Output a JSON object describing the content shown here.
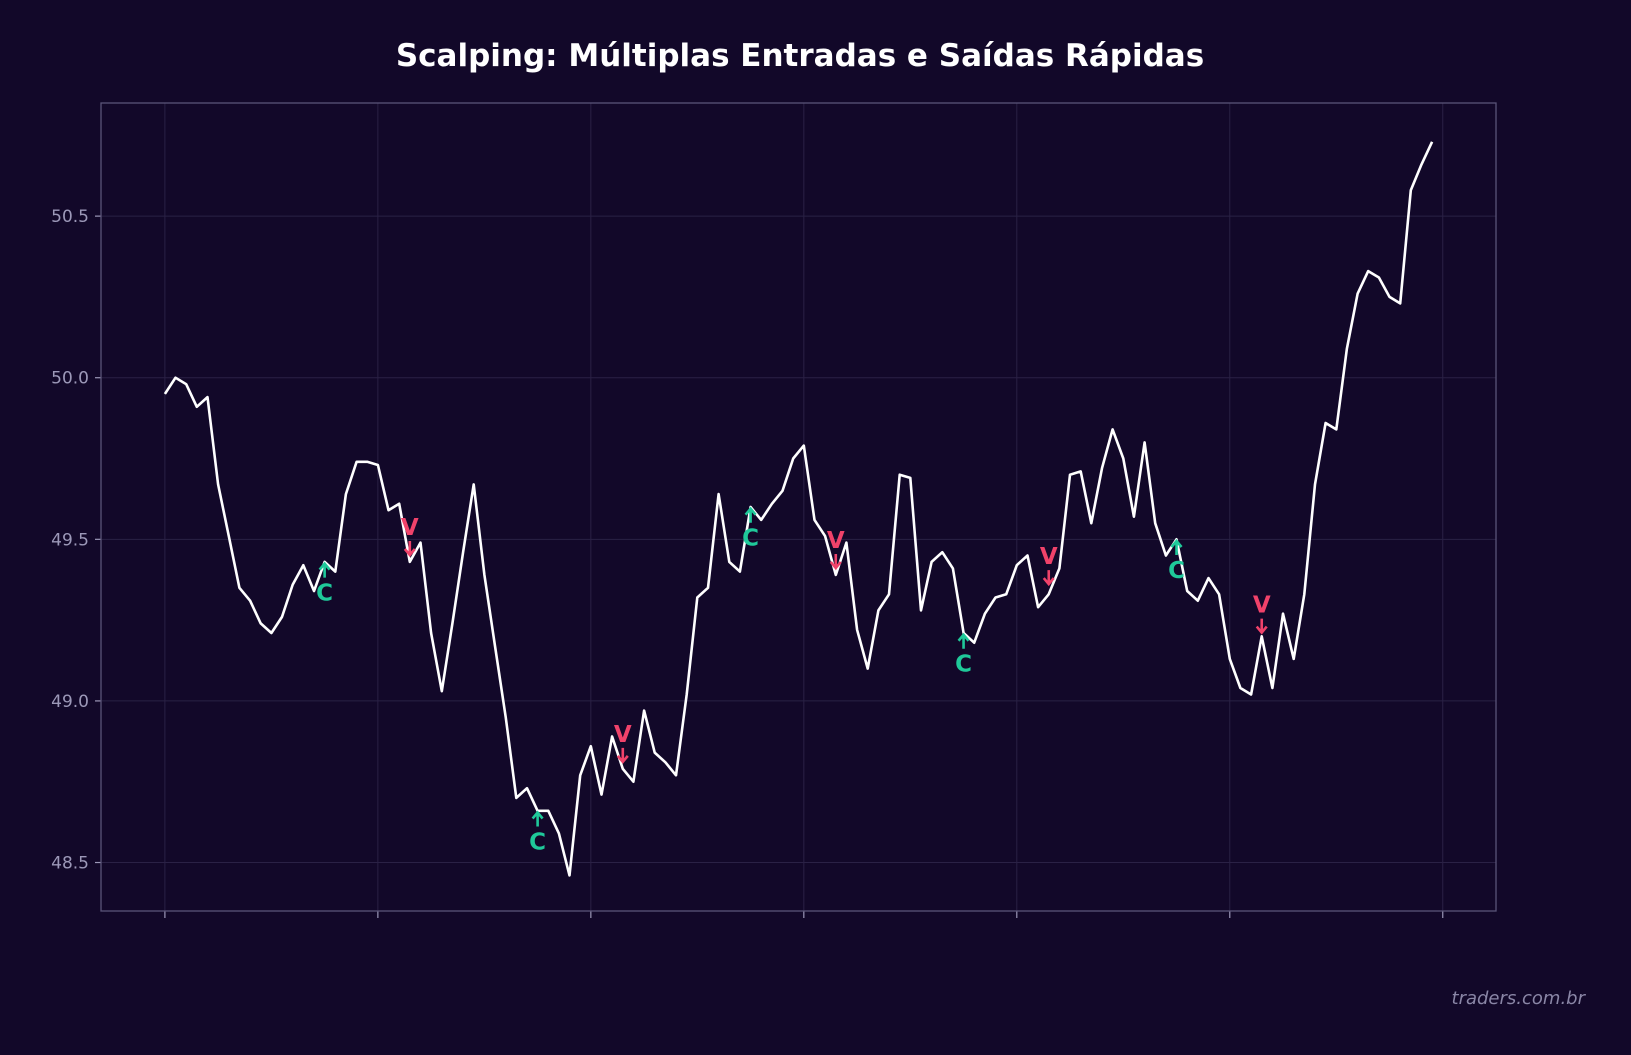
{
  "title": "Scalping: Múltiplas Entradas e Saídas Rápidas",
  "watermark": "traders.com.br",
  "colors": {
    "background": "#120829",
    "plot_background": "#120829",
    "line": "#ffffff",
    "buy": "#1fc99a",
    "sell": "#f0426a",
    "grid": "#2a2145",
    "tick_label": "#9c98b8"
  },
  "chart_data": {
    "type": "line",
    "title": "Scalping: Múltiplas Entradas e Saídas Rápidas",
    "xlabel": "",
    "ylabel": "",
    "x_tick_labels": [],
    "y_ticks": [
      48.5,
      49.0,
      49.5,
      50.0,
      50.5
    ],
    "y_tick_labels": [
      "48.5",
      "49.0",
      "49.5",
      "50.0",
      "50.5"
    ],
    "ylim": [
      48.35,
      50.85
    ],
    "xlim": [
      -6,
      125
    ],
    "grid": true,
    "series": [
      {
        "values": [
          49.95,
          50.0,
          49.98,
          49.91,
          49.94,
          49.67,
          49.51,
          49.35,
          49.31,
          49.24,
          49.21,
          49.26,
          49.36,
          49.42,
          49.34,
          49.43,
          49.4,
          49.64,
          49.74,
          49.74,
          49.73,
          49.59,
          49.61,
          49.43,
          49.49,
          49.21,
          49.03,
          49.24,
          49.46,
          49.67,
          49.39,
          49.17,
          48.95,
          48.7,
          48.73,
          48.66,
          48.66,
          48.59,
          48.46,
          48.77,
          48.86,
          48.71,
          48.89,
          48.79,
          48.75,
          48.97,
          48.84,
          48.81,
          48.77,
          49.02,
          49.32,
          49.35,
          49.64,
          49.43,
          49.4,
          49.6,
          49.56,
          49.61,
          49.65,
          49.75,
          49.79,
          49.56,
          49.51,
          49.39,
          49.49,
          49.22,
          49.1,
          49.28,
          49.33,
          49.7,
          49.69,
          49.28,
          49.43,
          49.46,
          49.41,
          49.21,
          49.18,
          49.27,
          49.32,
          49.33,
          49.42,
          49.45,
          49.29,
          49.33,
          49.41,
          49.7,
          49.71,
          49.55,
          49.72,
          49.84,
          49.75,
          49.57,
          49.8,
          49.55,
          49.45,
          49.5,
          49.34,
          49.31,
          49.38,
          49.33,
          49.13,
          49.04,
          49.02,
          49.2,
          49.04,
          49.27,
          49.13,
          49.33,
          49.67,
          49.86,
          49.84,
          50.09,
          50.26,
          50.33,
          50.31,
          50.25,
          50.23,
          50.58,
          50.66,
          50.73
        ]
      }
    ],
    "signals": [
      {
        "x": 15,
        "y": 49.4,
        "type": "buy",
        "label": "C"
      },
      {
        "x": 23,
        "y": 49.47,
        "type": "sell",
        "label": "V"
      },
      {
        "x": 35,
        "y": 48.63,
        "type": "buy",
        "label": "C"
      },
      {
        "x": 43,
        "y": 48.83,
        "type": "sell",
        "label": "V"
      },
      {
        "x": 55,
        "y": 49.57,
        "type": "buy",
        "label": "C"
      },
      {
        "x": 63,
        "y": 49.43,
        "type": "sell",
        "label": "V"
      },
      {
        "x": 75,
        "y": 49.18,
        "type": "buy",
        "label": "C"
      },
      {
        "x": 83,
        "y": 49.38,
        "type": "sell",
        "label": "V"
      },
      {
        "x": 95,
        "y": 49.47,
        "type": "buy",
        "label": "C"
      },
      {
        "x": 103,
        "y": 49.23,
        "type": "sell",
        "label": "V"
      }
    ]
  }
}
